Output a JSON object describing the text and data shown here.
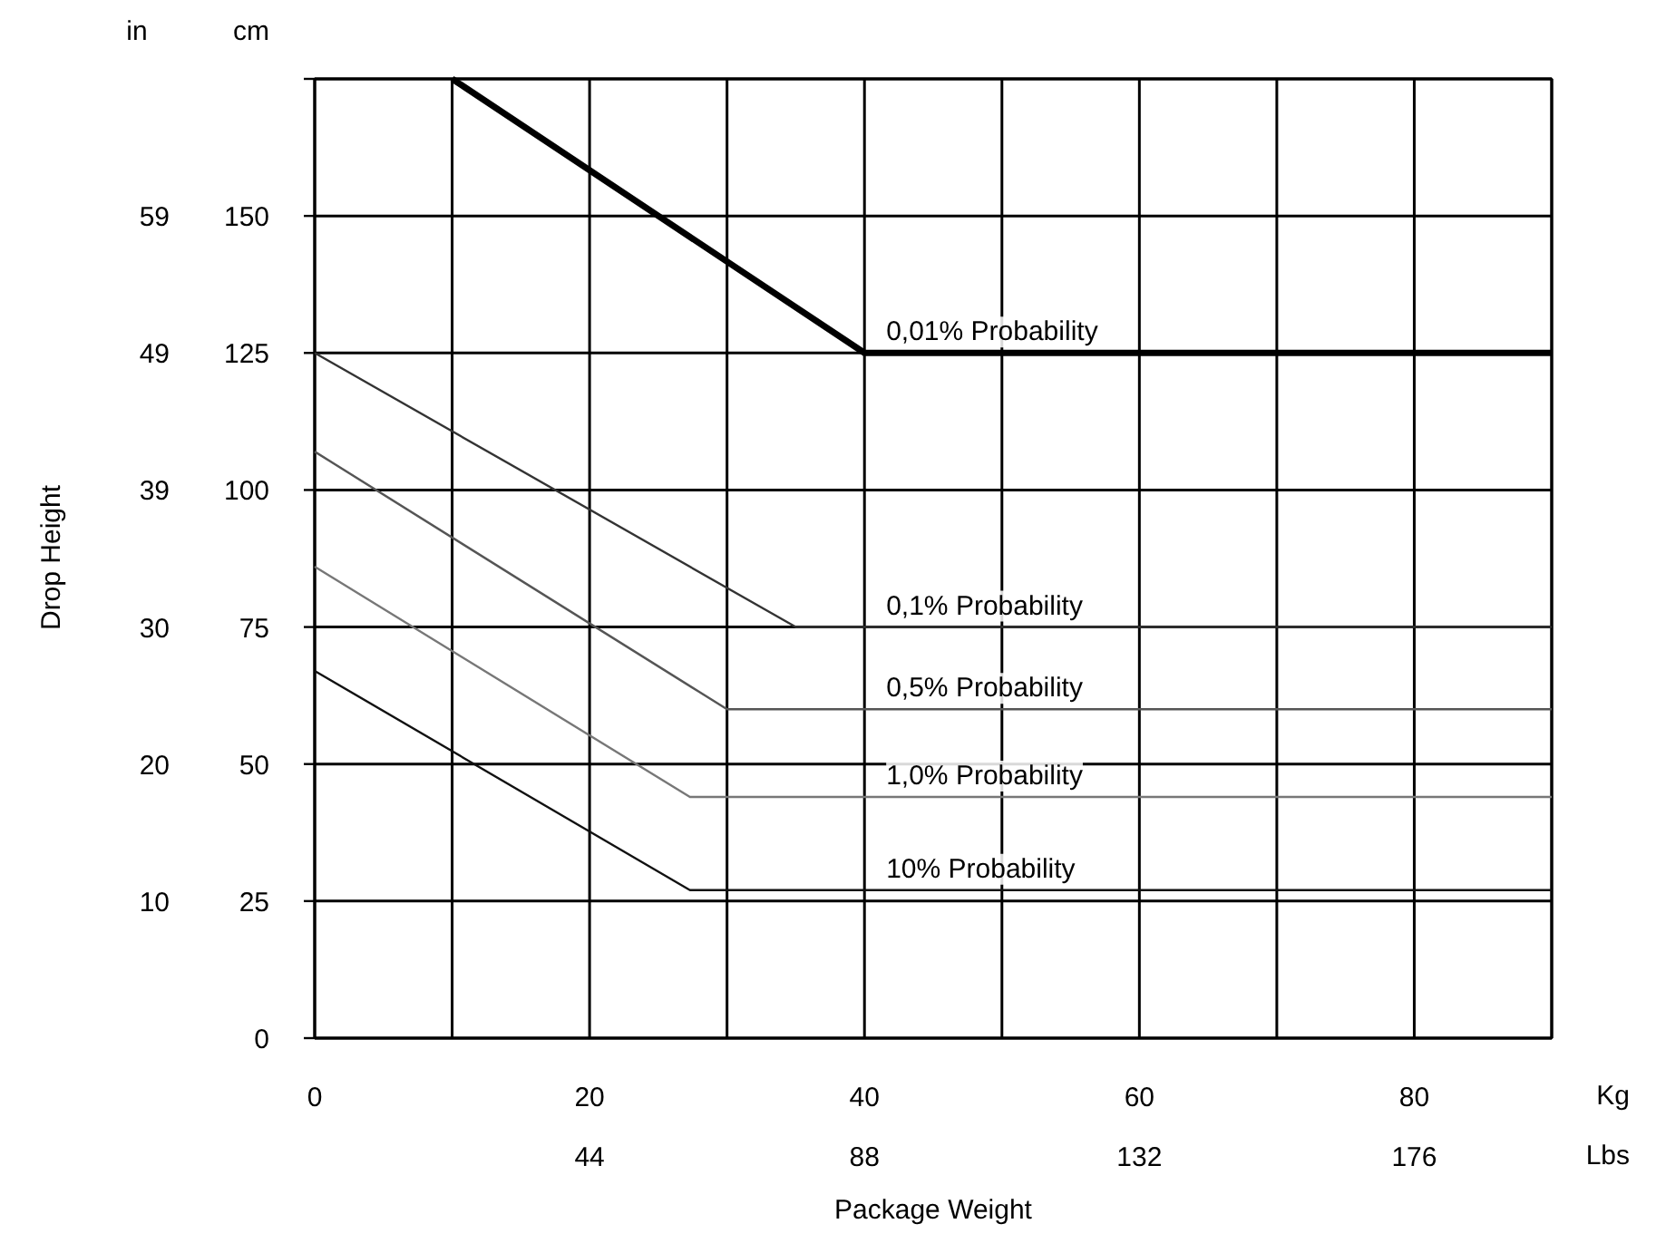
{
  "chart_data": {
    "type": "line",
    "xlabel": "Package Weight",
    "y2label": "Drop Height",
    "xlim": [
      0,
      90
    ],
    "ylim": [
      0,
      175
    ],
    "xticks": [
      0,
      {
        "value": 10,
        "label": null
      },
      20,
      {
        "value": 30,
        "label": null
      },
      40,
      {
        "value": 50,
        "label": null
      },
      60,
      {
        "value": 70,
        "label": null
      },
      80,
      {
        "value": 90,
        "label": null
      }
    ],
    "yticks": [
      0,
      25,
      50,
      75,
      100,
      125,
      150,
      {
        "value": 175,
        "label": null
      }
    ],
    "x2lim": [
      0,
      198
    ],
    "x2ticks": [
      44,
      88,
      132,
      176
    ],
    "y2lim": [
      0,
      68.9
    ],
    "y2ticks": [
      {
        "value": 9.84,
        "label": "10"
      },
      {
        "value": 19.69,
        "label": "20"
      },
      {
        "value": 29.53,
        "label": "30"
      },
      {
        "value": 39.37,
        "label": "39"
      },
      {
        "value": 49.21,
        "label": "49"
      },
      {
        "value": 59.06,
        "label": "59"
      }
    ],
    "grid": true,
    "legend": false,
    "line_style": "solid",
    "marker": "none",
    "annotations": [
      "in",
      "cm",
      "Kg",
      "Lbs"
    ],
    "series": [
      {
        "name": "0,01% Probability",
        "color": "#000000",
        "x": [
          10,
          40,
          90
        ],
        "values": [
          175,
          125,
          125
        ]
      },
      {
        "name": "0,1% Probability",
        "color": "#333333",
        "x": [
          0,
          35,
          90
        ],
        "values": [
          125,
          75,
          75
        ]
      },
      {
        "name": "0,5% Probability",
        "color": "#555555",
        "x": [
          0,
          30,
          90
        ],
        "values": [
          107,
          60,
          60
        ]
      },
      {
        "name": "1,0% Probability",
        "color": "#777777",
        "x": [
          0,
          27.3,
          90
        ],
        "values": [
          86,
          44,
          44
        ]
      },
      {
        "name": "10% Probability",
        "color": "#111111",
        "x": [
          0,
          27.3,
          90
        ],
        "values": [
          67,
          27,
          27
        ]
      }
    ]
  }
}
